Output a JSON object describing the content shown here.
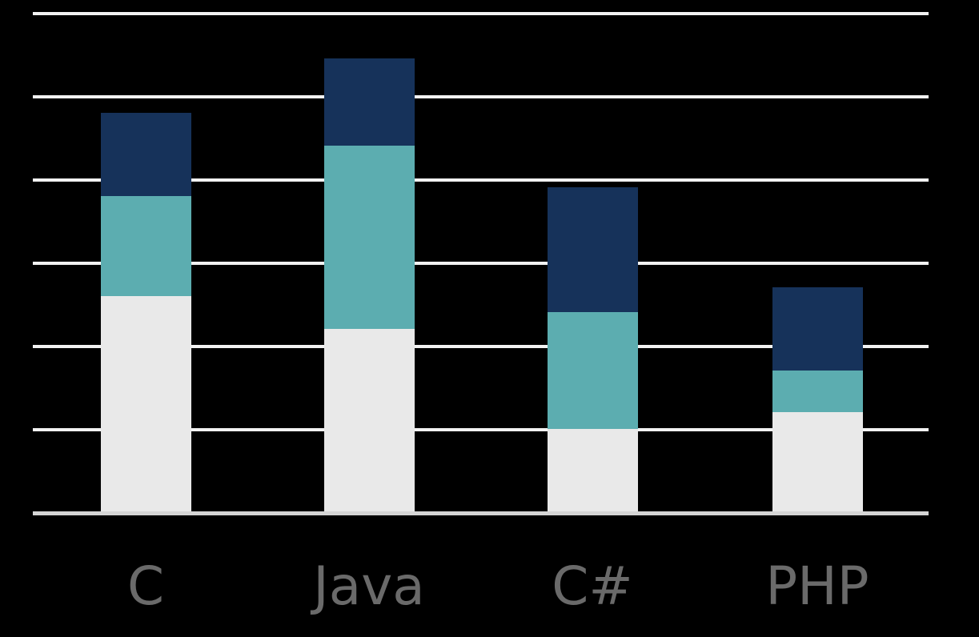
{
  "chart_data": {
    "type": "bar",
    "stacked": true,
    "title": "",
    "xlabel": "",
    "ylabel": "",
    "categories": [
      "C",
      "Java",
      "C#",
      "PHP"
    ],
    "series": [
      {
        "name": "bottom-light-gray-segment",
        "color": "#E9E9E9",
        "values": [
          26,
          22,
          10,
          12
        ]
      },
      {
        "name": "middle-teal-segment",
        "color": "#5CADB0",
        "values": [
          12,
          22,
          14,
          5
        ]
      },
      {
        "name": "top-navy-segment",
        "color": "#16325A",
        "values": [
          10,
          10.5,
          15,
          10
        ]
      }
    ],
    "ylim": [
      0,
      60
    ],
    "gridline_interval": 10,
    "grid": "horizontal",
    "legend": "none",
    "y_axis_tick_labels": "none",
    "note": "y-axis has no tick labels; segment values estimated from unlabeled gridlines"
  },
  "colors": {
    "background": "#000000",
    "gridline": "#F2F2F2",
    "baseline": "#D5D5D5",
    "label_text": "#6A6A6A"
  }
}
